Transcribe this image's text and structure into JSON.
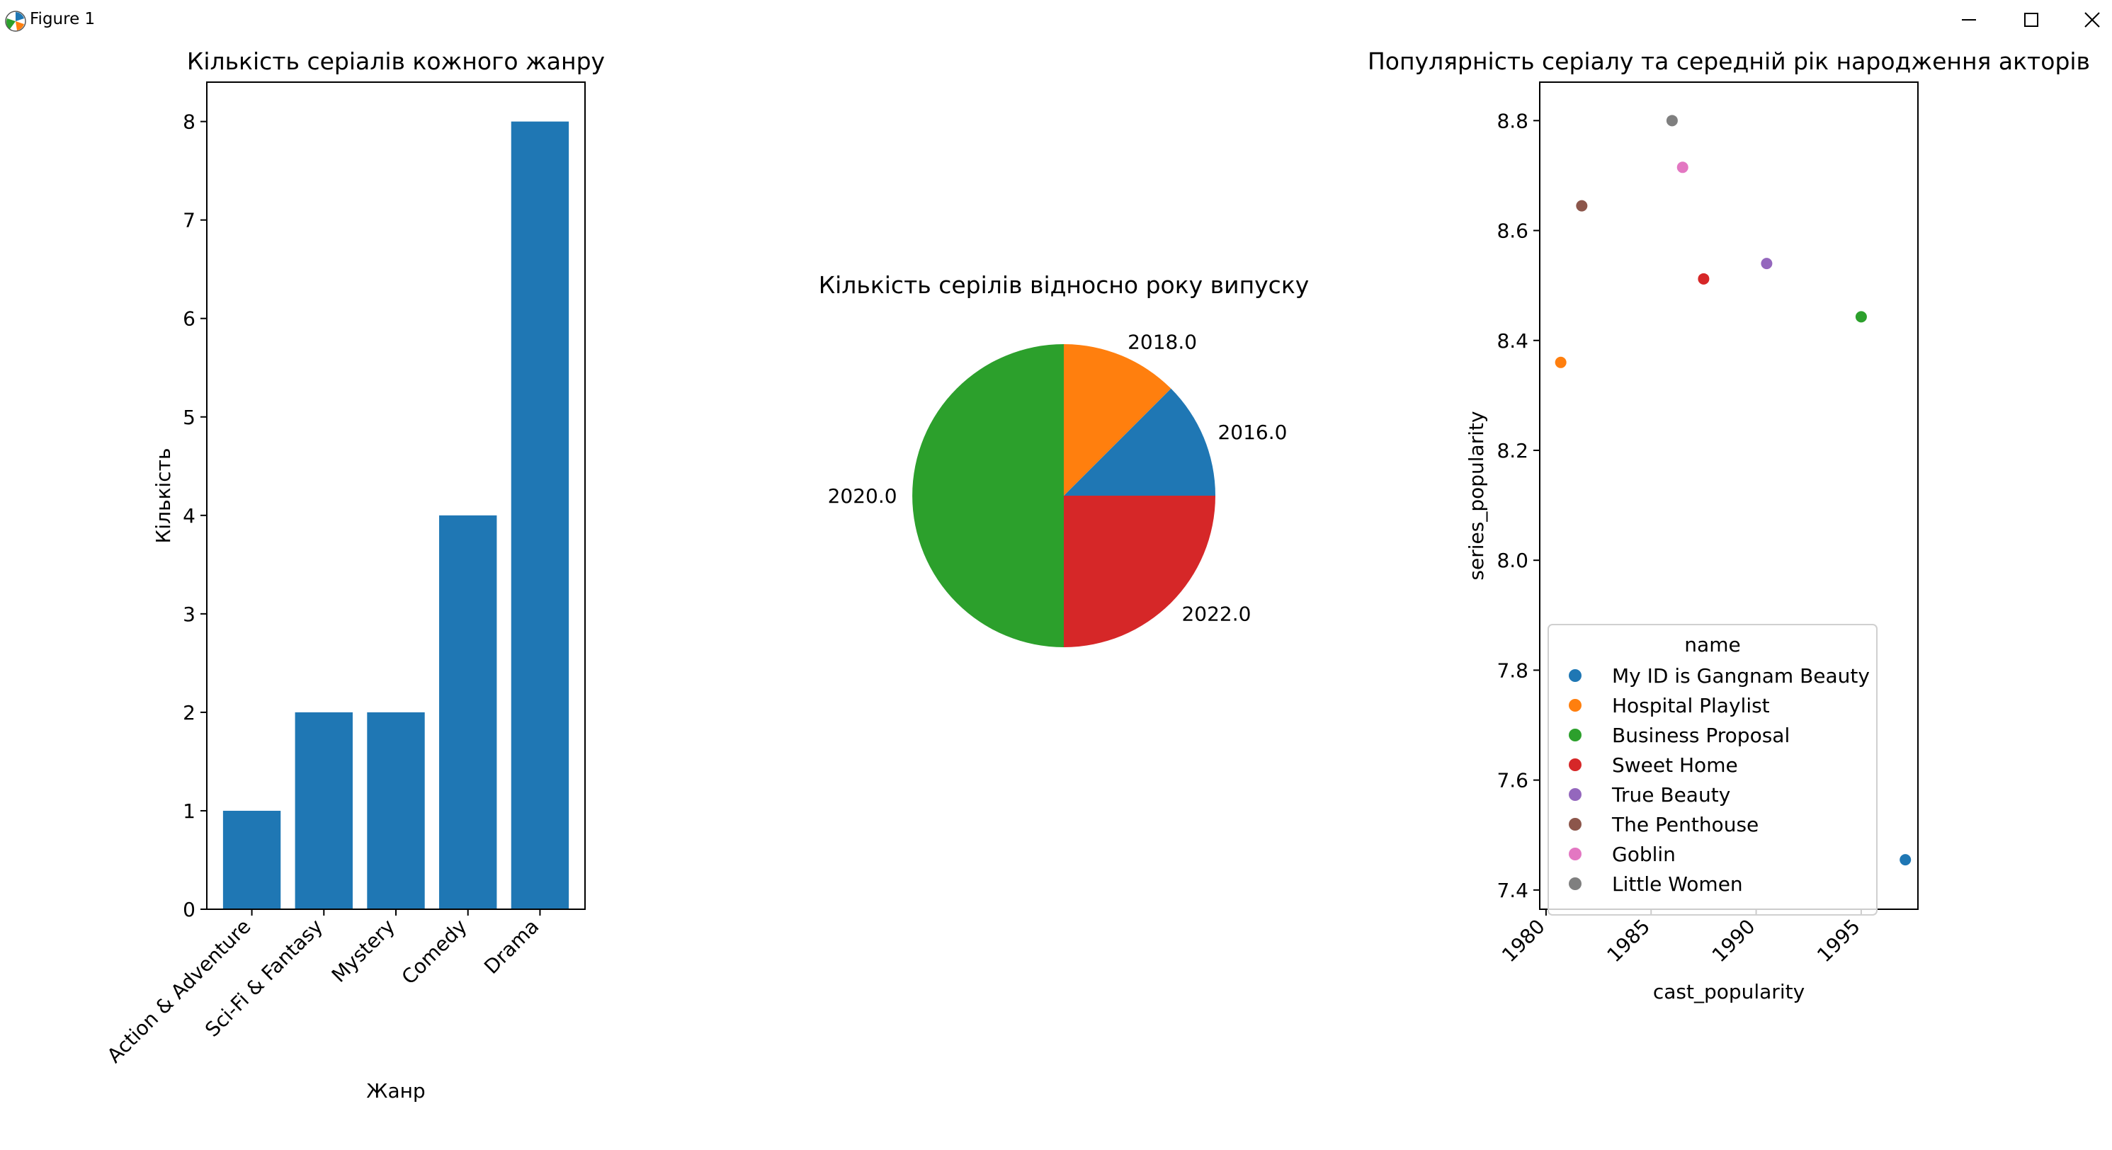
{
  "window": {
    "title": "Figure 1",
    "icons": {
      "app": "matplotlib-icon",
      "minimize": "minimize-icon",
      "maximize": "maximize-icon",
      "close": "close-icon"
    }
  },
  "chart_data": [
    {
      "type": "bar",
      "title": "Кількість серіалів кожного жанру",
      "xlabel": "Жанр",
      "ylabel": "Кількість",
      "categories": [
        "Action & Adventure",
        "Sci-Fi & Fantasy",
        "Mystery",
        "Comedy",
        "Drama"
      ],
      "values": [
        1,
        2,
        2,
        4,
        8
      ],
      "ylim": [
        0,
        8.4
      ],
      "yticks": [
        0,
        1,
        2,
        3,
        4,
        5,
        6,
        7,
        8
      ],
      "color": "#1f77b4",
      "grid": false
    },
    {
      "type": "pie",
      "title": "Кількість серілів відносно року випуску",
      "labels": [
        "2016.0",
        "2018.0",
        "2020.0",
        "2022.0"
      ],
      "values": [
        1,
        1,
        4,
        2
      ],
      "colors": [
        "#1f77b4",
        "#ff7f0e",
        "#2ca02c",
        "#d62728"
      ]
    },
    {
      "type": "scatter",
      "title": "Популярність серіалу та середній рік народження акторів",
      "xlabel": "cast_popularity",
      "ylabel": "series_popularity",
      "xlim": [
        1979.7,
        1997.7
      ],
      "ylim": [
        7.365,
        8.87
      ],
      "xticks": [
        1980,
        1985,
        1990,
        1995
      ],
      "yticks": [
        7.4,
        7.6,
        7.8,
        8.0,
        8.2,
        8.4,
        8.6,
        8.8
      ],
      "ytick_labels": [
        "7.4",
        "7.6",
        "7.8",
        "8.0",
        "8.2",
        "8.4",
        "8.6",
        "8.8"
      ],
      "legend_title": "name",
      "legend_position": "lower-right",
      "grid": false,
      "series": [
        {
          "name": "My ID is Gangnam Beauty",
          "x": 1997.1,
          "y": 7.455,
          "color": "#1f77b4"
        },
        {
          "name": "Hospital Playlist",
          "x": 1980.7,
          "y": 8.36,
          "color": "#ff7f0e"
        },
        {
          "name": "Business Proposal",
          "x": 1995.0,
          "y": 8.443,
          "color": "#2ca02c"
        },
        {
          "name": "Sweet Home",
          "x": 1987.5,
          "y": 8.512,
          "color": "#d62728"
        },
        {
          "name": "True Beauty",
          "x": 1990.5,
          "y": 8.54,
          "color": "#9467bd"
        },
        {
          "name": "The Penthouse",
          "x": 1981.7,
          "y": 8.645,
          "color": "#8c564b"
        },
        {
          "name": "Goblin",
          "x": 1986.5,
          "y": 8.715,
          "color": "#e377c2"
        },
        {
          "name": "Little Women",
          "x": 1986.0,
          "y": 8.8,
          "color": "#7f7f7f"
        }
      ]
    }
  ]
}
